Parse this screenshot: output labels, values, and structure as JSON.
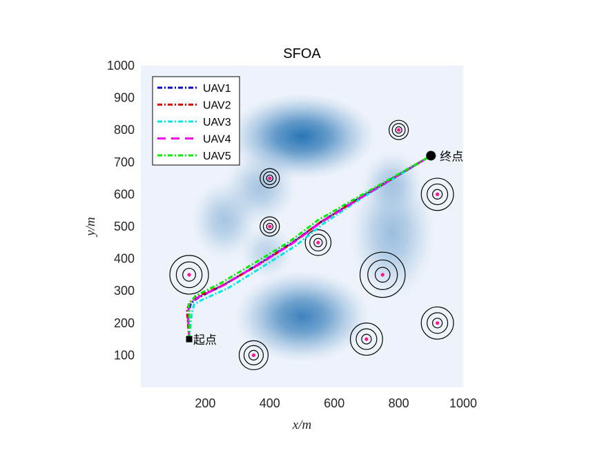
{
  "chart_data": {
    "type": "line",
    "title": "SFOA",
    "xlabel": "x/m",
    "ylabel": "y/m",
    "xlim": [
      0,
      1000
    ],
    "ylim": [
      0,
      1000
    ],
    "xticks": [
      200,
      400,
      600,
      800,
      1000
    ],
    "yticks": [
      100,
      200,
      300,
      400,
      500,
      600,
      700,
      800,
      900,
      1000
    ],
    "grid": false,
    "legend_position": "top-left",
    "background_terrain": [
      {
        "x": 500,
        "y": 780,
        "sx": 120,
        "sy": 70,
        "intensity": 0.95
      },
      {
        "x": 500,
        "y": 220,
        "sx": 110,
        "sy": 75,
        "intensity": 0.85
      },
      {
        "x": 370,
        "y": 620,
        "sx": 60,
        "sy": 60,
        "intensity": 0.35
      },
      {
        "x": 260,
        "y": 520,
        "sx": 55,
        "sy": 65,
        "intensity": 0.35
      },
      {
        "x": 780,
        "y": 480,
        "sx": 70,
        "sy": 110,
        "intensity": 0.4
      },
      {
        "x": 780,
        "y": 640,
        "sx": 50,
        "sy": 50,
        "intensity": 0.3
      },
      {
        "x": 390,
        "y": 420,
        "sx": 45,
        "sy": 45,
        "intensity": 0.25
      }
    ],
    "threats": [
      {
        "x": 150,
        "y": 350,
        "rings": [
          20,
          40,
          60
        ]
      },
      {
        "x": 350,
        "y": 100,
        "rings": [
          15,
          30,
          45
        ]
      },
      {
        "x": 400,
        "y": 650,
        "rings": [
          10,
          20,
          30
        ]
      },
      {
        "x": 400,
        "y": 500,
        "rings": [
          10,
          20,
          30
        ]
      },
      {
        "x": 550,
        "y": 450,
        "rings": [
          13,
          26,
          40
        ]
      },
      {
        "x": 700,
        "y": 150,
        "rings": [
          15,
          32,
          50
        ]
      },
      {
        "x": 750,
        "y": 350,
        "rings": [
          23,
          46,
          70
        ]
      },
      {
        "x": 800,
        "y": 800,
        "rings": [
          10,
          20,
          30
        ]
      },
      {
        "x": 920,
        "y": 600,
        "rings": [
          15,
          32,
          50
        ]
      },
      {
        "x": 920,
        "y": 200,
        "rings": [
          15,
          32,
          50
        ]
      }
    ],
    "start": {
      "x": 150,
      "y": 150,
      "label": "起点"
    },
    "end": {
      "x": 900,
      "y": 720,
      "label": "终点"
    },
    "series": [
      {
        "name": "UAV1",
        "color": "#0000cc",
        "dash": "7,3,2,3",
        "x": [
          150,
          148,
          155,
          180,
          260,
          360,
          470,
          560,
          680,
          900
        ],
        "y": [
          150,
          230,
          262,
          280,
          320,
          380,
          450,
          515,
          590,
          720
        ]
      },
      {
        "name": "UAV2",
        "color": "#e00000",
        "dash": "7,3,2,3",
        "x": [
          150,
          143,
          152,
          175,
          255,
          355,
          465,
          555,
          680,
          900
        ],
        "y": [
          150,
          240,
          265,
          282,
          318,
          375,
          445,
          512,
          588,
          720
        ]
      },
      {
        "name": "UAV3",
        "color": "#00e6e6",
        "dash": "7,3,2,3",
        "x": [
          150,
          158,
          165,
          190,
          270,
          370,
          480,
          565,
          680,
          900
        ],
        "y": [
          150,
          230,
          258,
          272,
          308,
          370,
          440,
          508,
          585,
          720
        ]
      },
      {
        "name": "UAV4",
        "color": "#ee00ee",
        "dash": "12,8",
        "x": [
          150,
          146,
          152,
          178,
          258,
          358,
          468,
          558,
          680,
          900
        ],
        "y": [
          150,
          232,
          262,
          280,
          318,
          378,
          446,
          512,
          588,
          720
        ]
      },
      {
        "name": "UAV5",
        "color": "#00ee00",
        "dash": "7,3,2,3",
        "x": [
          150,
          150,
          148,
          170,
          250,
          350,
          460,
          550,
          680,
          900
        ],
        "y": [
          150,
          230,
          258,
          285,
          325,
          385,
          452,
          520,
          595,
          720
        ]
      }
    ]
  }
}
